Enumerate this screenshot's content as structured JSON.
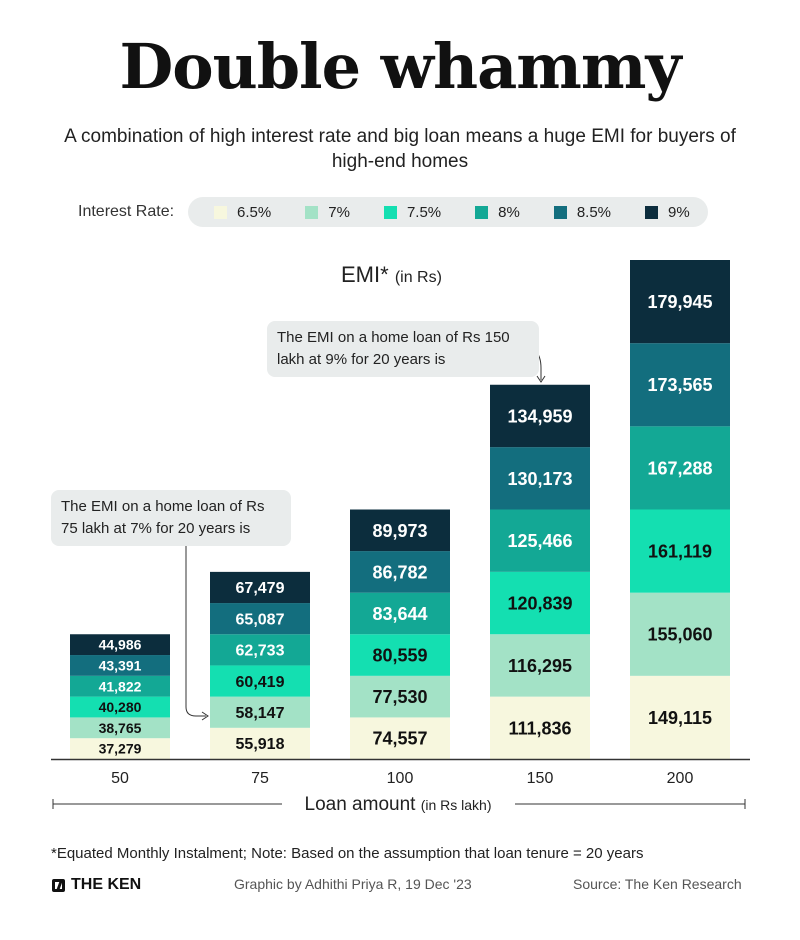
{
  "title": "Double whammy",
  "subtitle": "A combination of high interest rate and big loan means a huge EMI for buyers of high-end homes",
  "legend": {
    "label": "Interest Rate:",
    "items": [
      {
        "label": "6.5%",
        "color": "#f7f7de"
      },
      {
        "label": "7%",
        "color": "#a3e2c6"
      },
      {
        "label": "7.5%",
        "color": "#14dfb1"
      },
      {
        "label": "8%",
        "color": "#13a895"
      },
      {
        "label": "8.5%",
        "color": "#136e7e"
      },
      {
        "label": "9%",
        "color": "#0c2d3d"
      }
    ]
  },
  "unit_title": {
    "main": "EMI*",
    "suffix": "(in Rs)"
  },
  "callouts": {
    "c150": "The EMI on a home loan of Rs 150 lakh at 9% for 20 years is",
    "c75": "The EMI on a home loan of Rs 75 lakh at 7% for 20 years is"
  },
  "x_axis_label": {
    "main": "Loan amount",
    "suffix": "(in Rs lakh)"
  },
  "footnote": "*Equated Monthly Instalment; Note: Based on the assumption that loan tenure = 20 years",
  "footer": {
    "brand": "THE KEN",
    "credit": "Graphic by Adhithi Priya R, 19 Dec '23",
    "source": "Source: The Ken Research"
  },
  "chart_data": {
    "type": "bar",
    "categories": [
      "50",
      "75",
      "100",
      "150",
      "200"
    ],
    "series": [
      {
        "name": "6.5%",
        "color": "#f7f7de",
        "text_color": "#111111",
        "values": [
          37279,
          55918,
          74557,
          111836,
          149115
        ],
        "labels": [
          "37,279",
          "55,918",
          "74,557",
          "111,836",
          "149,115"
        ]
      },
      {
        "name": "7%",
        "color": "#a3e2c6",
        "text_color": "#111111",
        "values": [
          38765,
          58147,
          77530,
          116295,
          155060
        ],
        "labels": [
          "38,765",
          "58,147",
          "77,530",
          "116,295",
          "155,060"
        ]
      },
      {
        "name": "7.5%",
        "color": "#14dfb1",
        "text_color": "#111111",
        "values": [
          40280,
          60419,
          80559,
          120839,
          161119
        ],
        "labels": [
          "40,280",
          "60,419",
          "80,559",
          "120,839",
          "161,119"
        ]
      },
      {
        "name": "8%",
        "color": "#13a895",
        "text_color": "#ffffff",
        "values": [
          41822,
          62733,
          83644,
          125466,
          167288
        ],
        "labels": [
          "41,822",
          "62,733",
          "83,644",
          "125,466",
          "167,288"
        ]
      },
      {
        "name": "8.5%",
        "color": "#136e7e",
        "text_color": "#ffffff",
        "values": [
          43391,
          65087,
          86782,
          130173,
          173565
        ],
        "labels": [
          "43,391",
          "65,087",
          "86,782",
          "130,173",
          "173,565"
        ]
      },
      {
        "name": "9%",
        "color": "#0c2d3d",
        "text_color": "#ffffff",
        "values": [
          44986,
          67479,
          89973,
          134959,
          179945
        ],
        "labels": [
          "44,986",
          "67,479",
          "89,973",
          "134,959",
          "179,945"
        ]
      }
    ],
    "ylabel": "EMI* (in Rs)",
    "xlabel": "Loan amount (in Rs lakh)",
    "stacked_display": "each bar's total height equals the 9% EMI; segments are equal slices labelled with the EMI at each rate"
  }
}
